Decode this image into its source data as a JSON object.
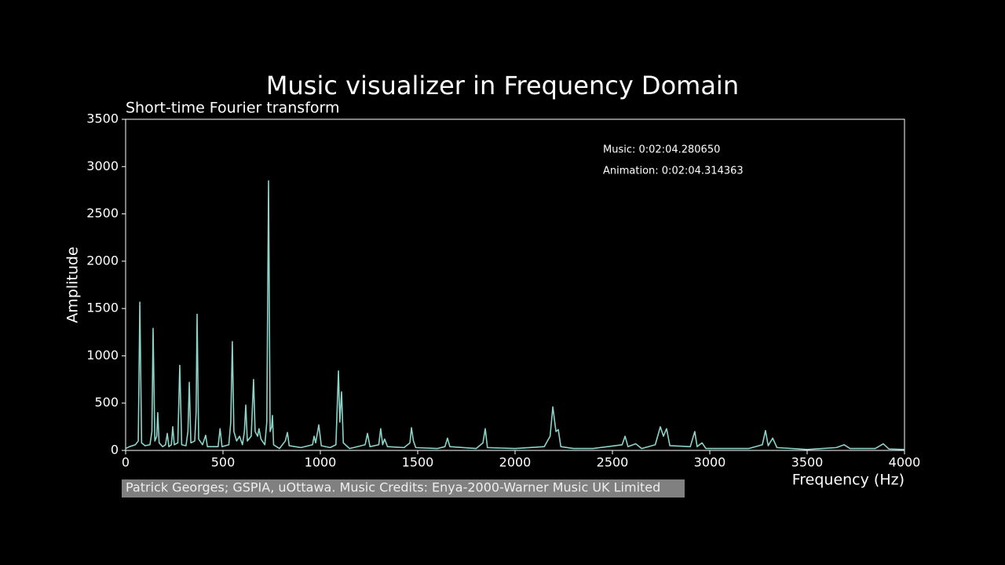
{
  "chart_data": {
    "type": "line",
    "title": "Music visualizer in Frequency Domain",
    "subtitle": "Short-time Fourier transform",
    "x_label": "Frequency (Hz)",
    "y_label": "Amplitude",
    "annotations": [
      "Music: 0:02:04.280650",
      "Animation: 0:02:04.314363"
    ],
    "credit": "Patrick Georges; GSPIA, uOttawa.  Music Credits: Enya-2000-Warner Music UK Limited",
    "xlim": [
      0,
      4000
    ],
    "ylim": [
      0,
      3500
    ],
    "xticks": [
      0,
      500,
      1000,
      1500,
      2000,
      2500,
      3000,
      3500,
      4000
    ],
    "yticks": [
      0,
      500,
      1000,
      1500,
      2000,
      2500,
      3000,
      3500
    ],
    "x": [
      0,
      20,
      50,
      65,
      73,
      82,
      100,
      125,
      135,
      141,
      150,
      160,
      165,
      172,
      190,
      205,
      214,
      222,
      235,
      242,
      250,
      268,
      278,
      288,
      310,
      320,
      327,
      335,
      355,
      362,
      367,
      375,
      395,
      411,
      420,
      475,
      485,
      495,
      530,
      540,
      548,
      556,
      570,
      585,
      600,
      610,
      617,
      625,
      645,
      657,
      665,
      678,
      685,
      695,
      715,
      725,
      734,
      742,
      750,
      754,
      760,
      790,
      820,
      831,
      840,
      900,
      960,
      968,
      976,
      992,
      1005,
      1050,
      1080,
      1093,
      1100,
      1109,
      1118,
      1150,
      1230,
      1242,
      1255,
      1300,
      1310,
      1320,
      1330,
      1345,
      1430,
      1460,
      1468,
      1478,
      1490,
      1600,
      1640,
      1653,
      1665,
      1800,
      1835,
      1847,
      1858,
      2000,
      2150,
      2180,
      2194,
      2210,
      2222,
      2235,
      2300,
      2400,
      2550,
      2565,
      2580,
      2620,
      2650,
      2720,
      2746,
      2762,
      2778,
      2795,
      2900,
      2923,
      2935,
      2960,
      2980,
      3200,
      3270,
      3286,
      3300,
      3323,
      3345,
      3500,
      3650,
      3690,
      3720,
      3850,
      3891,
      3920,
      4000
    ],
    "series": [
      {
        "color": "#8dd3c7",
        "values": [
          20,
          40,
          60,
          100,
          1567,
          80,
          50,
          60,
          200,
          1290,
          100,
          150,
          400,
          80,
          40,
          60,
          180,
          40,
          60,
          250,
          60,
          80,
          900,
          60,
          50,
          200,
          720,
          80,
          100,
          400,
          1440,
          120,
          60,
          160,
          40,
          40,
          230,
          40,
          60,
          300,
          1150,
          200,
          100,
          150,
          60,
          200,
          480,
          100,
          150,
          750,
          200,
          150,
          230,
          120,
          60,
          300,
          2850,
          200,
          250,
          370,
          60,
          20,
          100,
          190,
          50,
          30,
          60,
          150,
          80,
          270,
          50,
          30,
          60,
          840,
          300,
          620,
          80,
          20,
          60,
          180,
          40,
          60,
          230,
          60,
          120,
          40,
          30,
          80,
          240,
          100,
          30,
          20,
          40,
          130,
          40,
          20,
          80,
          230,
          30,
          20,
          40,
          150,
          460,
          200,
          220,
          40,
          20,
          20,
          60,
          150,
          40,
          70,
          20,
          60,
          250,
          150,
          230,
          50,
          40,
          200,
          40,
          80,
          20,
          20,
          60,
          210,
          50,
          130,
          30,
          10,
          30,
          60,
          20,
          20,
          70,
          15,
          10
        ]
      }
    ]
  }
}
